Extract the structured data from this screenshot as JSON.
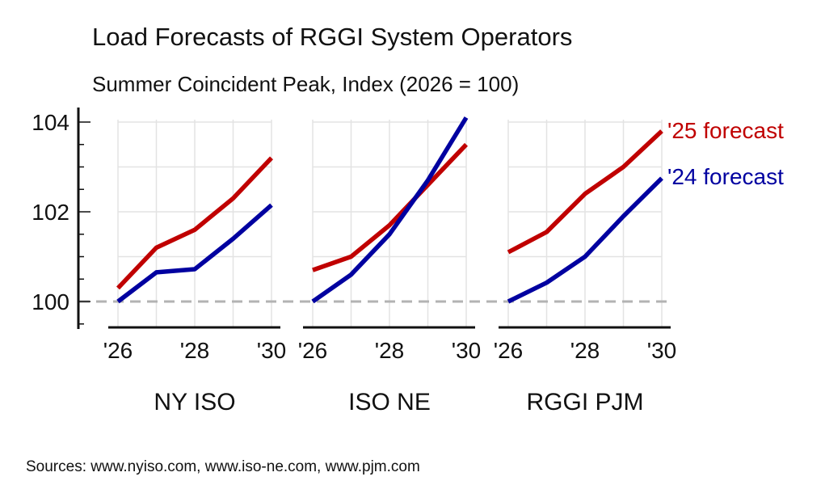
{
  "title": "Load Forecasts of RGGI System Operators",
  "subtitle": "Summer Coincident Peak, Index (2026 = 100)",
  "source": "Sources: www.nyiso.com, www.iso-ne.com, www.pjm.com",
  "colors": {
    "forecast_2025": "#c00000",
    "forecast_2024": "#0000a0",
    "grid": "#e3e3e3",
    "baseline": "#b3b3b3"
  },
  "chart_data": {
    "type": "line",
    "title": "Load Forecasts of RGGI System Operators",
    "subtitle": "Summer Coincident Peak, Index (2026 = 100)",
    "ylabel": "",
    "ylim": [
      99.4,
      104.2
    ],
    "y_ticks": [
      "100",
      "102",
      "104"
    ],
    "x": [
      2026,
      2027,
      2028,
      2029,
      2030
    ],
    "x_tick_labels": [
      "'26",
      "'28",
      "'30"
    ],
    "reference_line": 100,
    "panels": [
      {
        "name": "NY ISO",
        "series": [
          {
            "name": "'25 forecast",
            "values": [
              100.3,
              101.2,
              101.6,
              102.3,
              103.2
            ]
          },
          {
            "name": "'24 forecast",
            "values": [
              100.0,
              100.65,
              100.72,
              101.4,
              102.15
            ]
          }
        ]
      },
      {
        "name": "ISO NE",
        "series": [
          {
            "name": "'25 forecast",
            "values": [
              100.7,
              101.0,
              101.7,
              102.6,
              103.5
            ]
          },
          {
            "name": "'24 forecast",
            "values": [
              100.0,
              100.6,
              101.5,
              102.7,
              104.1
            ]
          }
        ]
      },
      {
        "name": "RGGI PJM",
        "series": [
          {
            "name": "'25 forecast",
            "values": [
              101.1,
              101.55,
              102.4,
              103.0,
              103.8
            ]
          },
          {
            "name": "'24 forecast",
            "values": [
              100.0,
              100.42,
              101.0,
              101.9,
              102.75
            ]
          }
        ]
      }
    ],
    "legend": [
      {
        "name": "'25 forecast",
        "placement": "right"
      },
      {
        "name": "'24 forecast",
        "placement": "right"
      }
    ]
  }
}
